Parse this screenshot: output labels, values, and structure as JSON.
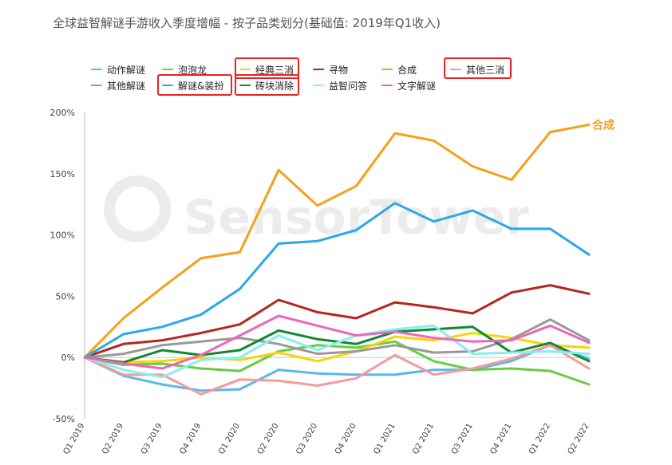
{
  "title": "全球益智解谜手游收入季度增幅 - 按子品类划分(基础值: 2019年Q1收入)",
  "watermark": "SensorTower",
  "end_label": "合成",
  "chart_data": {
    "type": "line",
    "title": "全球益智解谜手游收入季度增幅 - 按子品类划分(基础值: 2019年Q1收入)",
    "x": [
      "Q1 2019",
      "Q2 2019",
      "Q3 2019",
      "Q4 2019",
      "Q1 2020",
      "Q2 2020",
      "Q3 2020",
      "Q4 2020",
      "Q1 2021",
      "Q2 2021",
      "Q3 2021",
      "Q4 2021",
      "Q1 2022",
      "Q2 2022"
    ],
    "ylim": [
      -50,
      200
    ],
    "yticks": [
      -50,
      0,
      50,
      100,
      150,
      200
    ],
    "ytick_labels": [
      "-50%",
      "0%",
      "50%",
      "100%",
      "150%",
      "200%"
    ],
    "series": [
      {
        "name": "动作解谜",
        "color": "#5bb8ea",
        "values": [
          0,
          -15,
          -22,
          -27,
          -26,
          -10,
          -13,
          -14,
          -14,
          -10,
          -10,
          -3,
          10,
          -1
        ]
      },
      {
        "name": "泡泡龙",
        "color": "#66cc44",
        "values": [
          0,
          -6,
          -5,
          -9,
          -11,
          5,
          10,
          8,
          13,
          -3,
          -10,
          -9,
          -11,
          -22
        ]
      },
      {
        "name": "经典三消",
        "color": "#f5d50a",
        "values": [
          0,
          -4,
          -3,
          0,
          -2,
          4,
          -3,
          5,
          17,
          14,
          20,
          16,
          10,
          8
        ]
      },
      {
        "name": "寻物",
        "color": "#b5261e",
        "values": [
          0,
          11,
          14,
          20,
          27,
          47,
          37,
          32,
          45,
          41,
          36,
          53,
          59,
          52
        ]
      },
      {
        "name": "合成",
        "color": "#f5a01a",
        "values": [
          0,
          32,
          57,
          81,
          86,
          153,
          124,
          140,
          183,
          177,
          156,
          145,
          184,
          190
        ]
      },
      {
        "name": "其他三消",
        "color": "#f59a9a",
        "values": [
          0,
          -14,
          -14,
          -30,
          -18,
          -19,
          -23,
          -17,
          2,
          -14,
          -9,
          -1,
          10,
          -9
        ]
      },
      {
        "name": "其他解谜",
        "color": "#999999",
        "values": [
          0,
          3,
          10,
          13,
          16,
          11,
          3,
          5,
          10,
          4,
          5,
          15,
          31,
          14
        ]
      },
      {
        "name": "解谜&装扮",
        "color": "#2aa8ea",
        "values": [
          0,
          19,
          25,
          35,
          56,
          93,
          95,
          104,
          126,
          111,
          120,
          105,
          105,
          84
        ]
      },
      {
        "name": "砖块消除",
        "color": "#118833",
        "values": [
          0,
          -4,
          6,
          2,
          6,
          22,
          15,
          11,
          21,
          23,
          25,
          4,
          12,
          -3
        ]
      },
      {
        "name": "益智问答",
        "color": "#88eeee",
        "values": [
          0,
          -10,
          -16,
          -2,
          0,
          18,
          6,
          18,
          23,
          26,
          3,
          4,
          5,
          3
        ]
      },
      {
        "name": "文字解谜",
        "color": "#ee66bb",
        "values": [
          0,
          -5,
          -9,
          2,
          18,
          34,
          26,
          18,
          21,
          16,
          13,
          14,
          26,
          12
        ]
      }
    ],
    "highlighted": [
      "经典三消",
      "其他三消",
      "解谜&装扮",
      "砖块消除"
    ],
    "annotation": {
      "series": "合成",
      "text": "合成"
    },
    "legend_position": "top",
    "grid": false
  }
}
